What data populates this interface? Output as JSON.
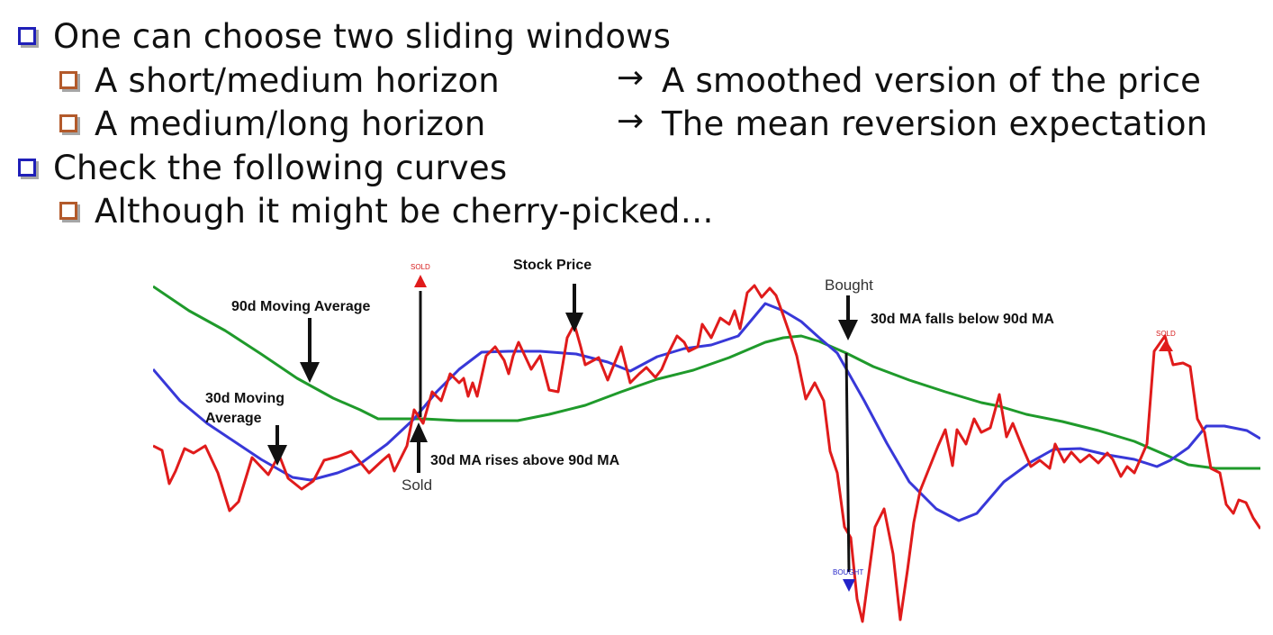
{
  "bullets": [
    {
      "text": "One can choose two sliding windows",
      "level": 1,
      "icon": "blue-square-bullet-icon"
    },
    {
      "text": "A short/medium horizon",
      "level": 2,
      "icon": "orange-square-bullet-icon",
      "arrow_text": "A smoothed version of the price"
    },
    {
      "text": "A medium/long horizon",
      "level": 2,
      "icon": "orange-square-bullet-icon",
      "arrow_text": "The mean reversion expectation"
    },
    {
      "text": "Check the following curves",
      "level": 1,
      "icon": "blue-square-bullet-icon"
    },
    {
      "text": "Although it might be cherry-picked…",
      "level": 2,
      "icon": "orange-square-bullet-icon"
    }
  ],
  "colors": {
    "stock_price": "#e01b1b",
    "ma30": "#3838d8",
    "ma90": "#1f9a2b",
    "bullet_blue": "#1f1fb8",
    "bullet_orange": "#b35a2b"
  },
  "chart": {
    "labels": {
      "ma90": "90d Moving Average",
      "stock": "Stock Price",
      "ma30_line1": "30d Moving",
      "ma30_line2": "Average",
      "rises": "30d MA rises above 90d MA",
      "falls": "30d MA falls below 90d MA",
      "sold": "Sold",
      "bought": "Bought",
      "sold_small_1": "SOLD",
      "sold_small_2": "SOLD",
      "bought_small": "BOUGHT"
    }
  }
}
